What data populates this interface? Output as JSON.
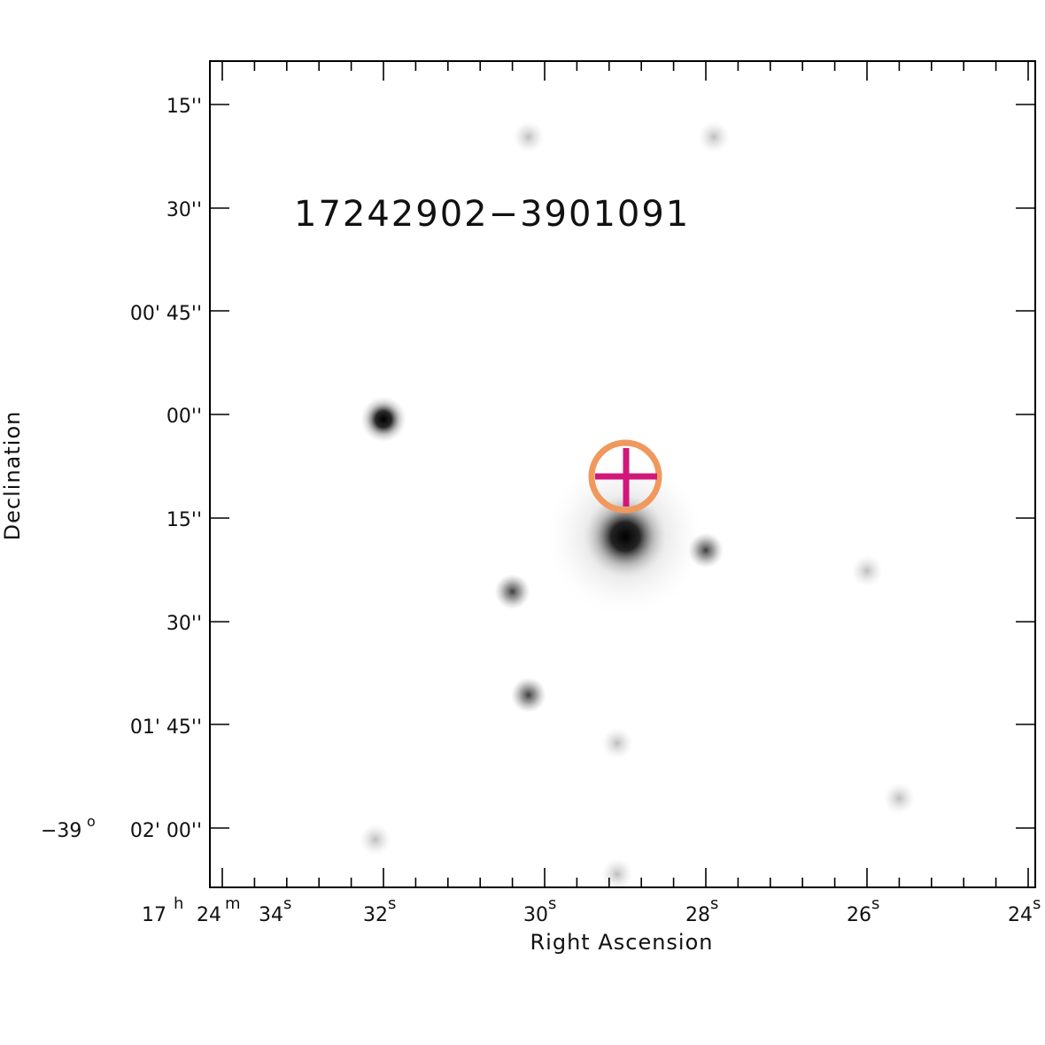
{
  "source_id": "17242902−3901091",
  "colors": {
    "label": "#1f5a3c",
    "circle": "#f0985e",
    "cross": "#d1187a",
    "axis": "#000000"
  },
  "x_axis": {
    "title": "Right Ascension",
    "labels": [
      {
        "hms": "17",
        "h": "h",
        "m": "24",
        "m_unit": "m",
        "sec": "34",
        "s": "s"
      },
      {
        "sec": "32",
        "s": "s"
      },
      {
        "sec": "30",
        "s": "s"
      },
      {
        "sec": "28",
        "s": "s"
      },
      {
        "sec": "26",
        "s": "s"
      },
      {
        "sec": "24",
        "s": "s"
      }
    ]
  },
  "y_axis": {
    "title": "Declination",
    "labels": [
      {
        "text": "15''"
      },
      {
        "text": "30''"
      },
      {
        "text": "00' 45''"
      },
      {
        "text": "00''"
      },
      {
        "text": "15''"
      },
      {
        "text": "30''"
      },
      {
        "text": "01' 45''"
      },
      {
        "deg": "−39",
        "deg_unit": "o",
        "text": "02' 00''"
      }
    ]
  },
  "image": {
    "stars": [
      {
        "ra_s": 32.0,
        "dec_s": 52,
        "mag": "bright"
      },
      {
        "ra_s": 29.0,
        "dec_s": 69,
        "mag": "target"
      },
      {
        "ra_s": 28.0,
        "dec_s": 71,
        "mag": "medium"
      },
      {
        "ra_s": 30.4,
        "dec_s": 77,
        "mag": "medium"
      },
      {
        "ra_s": 30.2,
        "dec_s": 92,
        "mag": "medium"
      },
      {
        "ra_s": 30.2,
        "dec_s": 11,
        "mag": "faint"
      },
      {
        "ra_s": 32.1,
        "dec_s": 113,
        "mag": "faint"
      },
      {
        "ra_s": 26.0,
        "dec_s": 74,
        "mag": "faint"
      },
      {
        "ra_s": 29.1,
        "dec_s": 99,
        "mag": "faint"
      },
      {
        "ra_s": 29.1,
        "dec_s": 118,
        "mag": "faint"
      },
      {
        "ra_s": 27.9,
        "dec_s": 11,
        "mag": "faint"
      },
      {
        "ra_s": 25.6,
        "dec_s": 107,
        "mag": "faint"
      }
    ]
  }
}
